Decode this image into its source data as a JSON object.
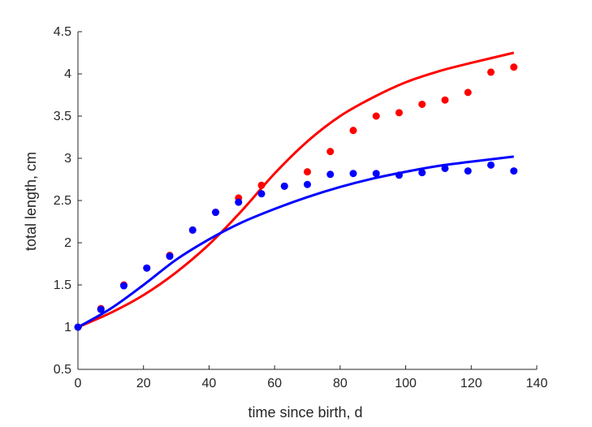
{
  "chart_data": {
    "type": "scatter",
    "title": "",
    "xlabel": "time since birth, d",
    "ylabel": "total length, cm",
    "xlim": [
      0,
      140
    ],
    "ylim": [
      0.5,
      4.5
    ],
    "xticks": [
      0,
      20,
      40,
      60,
      80,
      100,
      120,
      140
    ],
    "xtick_labels": [
      "0",
      "20",
      "40",
      "60",
      "80",
      "100",
      "120",
      "140"
    ],
    "yticks": [
      0.5,
      1,
      1.5,
      2,
      2.5,
      3,
      3.5,
      4,
      4.5
    ],
    "ytick_labels": [
      "0.5",
      "1",
      "1.5",
      "2",
      "2.5",
      "3",
      "3.5",
      "4",
      "4.5"
    ],
    "grid": false,
    "legend": "none",
    "series": [
      {
        "kind": "points",
        "color": "#ff0000",
        "x": [
          0,
          7,
          14,
          21,
          28,
          35,
          42,
          49,
          56,
          63,
          70,
          77,
          84,
          91,
          98,
          105,
          112,
          119,
          126,
          133
        ],
        "y": [
          1.0,
          1.22,
          1.5,
          1.7,
          1.85,
          2.15,
          2.36,
          2.53,
          2.68,
          2.67,
          2.84,
          3.08,
          3.33,
          3.5,
          3.54,
          3.64,
          3.69,
          3.78,
          4.02,
          4.08
        ]
      },
      {
        "kind": "points",
        "color": "#0000ff",
        "x": [
          0,
          7,
          14,
          21,
          28,
          35,
          42,
          49,
          56,
          63,
          70,
          77,
          84,
          91,
          98,
          105,
          112,
          119,
          126,
          133
        ],
        "y": [
          1.0,
          1.21,
          1.49,
          1.7,
          1.84,
          2.15,
          2.36,
          2.48,
          2.58,
          2.67,
          2.69,
          2.81,
          2.82,
          2.82,
          2.8,
          2.83,
          2.88,
          2.85,
          2.92,
          2.85
        ]
      },
      {
        "kind": "line",
        "color": "#ff0000",
        "x": [
          0,
          10,
          20,
          30,
          40,
          50,
          60,
          70,
          80,
          90,
          100,
          110,
          120,
          133
        ],
        "y": [
          1.0,
          1.17,
          1.38,
          1.65,
          1.98,
          2.38,
          2.82,
          3.2,
          3.5,
          3.72,
          3.9,
          4.03,
          4.13,
          4.25
        ]
      },
      {
        "kind": "line",
        "color": "#0000ff",
        "x": [
          0,
          10,
          20,
          30,
          40,
          50,
          60,
          70,
          80,
          90,
          100,
          110,
          120,
          133
        ],
        "y": [
          1.0,
          1.22,
          1.5,
          1.8,
          2.04,
          2.24,
          2.4,
          2.54,
          2.66,
          2.76,
          2.84,
          2.91,
          2.96,
          3.02
        ]
      }
    ]
  }
}
